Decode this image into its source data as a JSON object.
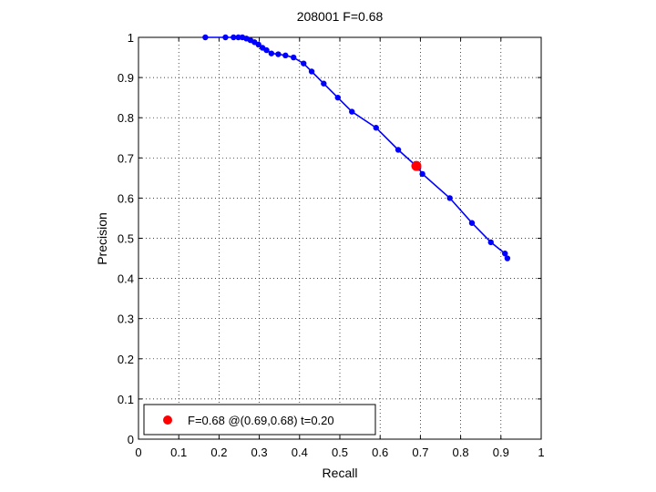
{
  "chart_data": {
    "type": "line",
    "title": "208001 F=0.68",
    "xlabel": "Recall",
    "ylabel": "Precision",
    "xlim": [
      0,
      1
    ],
    "ylim": [
      0,
      1
    ],
    "grid": true,
    "x_ticks": [
      "0",
      "0.1",
      "0.2",
      "0.3",
      "0.4",
      "0.5",
      "0.6",
      "0.7",
      "0.8",
      "0.9",
      "1"
    ],
    "y_ticks": [
      "0",
      "0.1",
      "0.2",
      "0.3",
      "0.4",
      "0.5",
      "0.6",
      "0.7",
      "0.8",
      "0.9",
      "1"
    ],
    "series": [
      {
        "color": "#0000ff",
        "marker": "dot",
        "points": [
          [
            0.166,
            1.0
          ],
          [
            0.216,
            1.0
          ],
          [
            0.236,
            1.0
          ],
          [
            0.248,
            1.0
          ],
          [
            0.258,
            1.0
          ],
          [
            0.268,
            0.997
          ],
          [
            0.278,
            0.993
          ],
          [
            0.288,
            0.988
          ],
          [
            0.298,
            0.982
          ],
          [
            0.308,
            0.974
          ],
          [
            0.318,
            0.968
          ],
          [
            0.33,
            0.96
          ],
          [
            0.347,
            0.958
          ],
          [
            0.365,
            0.955
          ],
          [
            0.385,
            0.95
          ],
          [
            0.41,
            0.935
          ],
          [
            0.43,
            0.915
          ],
          [
            0.46,
            0.885
          ],
          [
            0.495,
            0.85
          ],
          [
            0.53,
            0.815
          ],
          [
            0.59,
            0.775
          ],
          [
            0.645,
            0.72
          ],
          [
            0.695,
            0.675
          ],
          [
            0.705,
            0.66
          ],
          [
            0.773,
            0.6
          ],
          [
            0.828,
            0.538
          ],
          [
            0.875,
            0.49
          ],
          [
            0.91,
            0.462
          ],
          [
            0.916,
            0.45
          ]
        ]
      }
    ],
    "highlight": {
      "color": "#ff0000",
      "recall": 0.69,
      "precision": 0.68
    },
    "legend": {
      "position": "bottom-left",
      "entries": [
        {
          "color": "#ff0000",
          "label": "F=0.68 @(0.69,0.68) t=0.20"
        }
      ]
    }
  }
}
